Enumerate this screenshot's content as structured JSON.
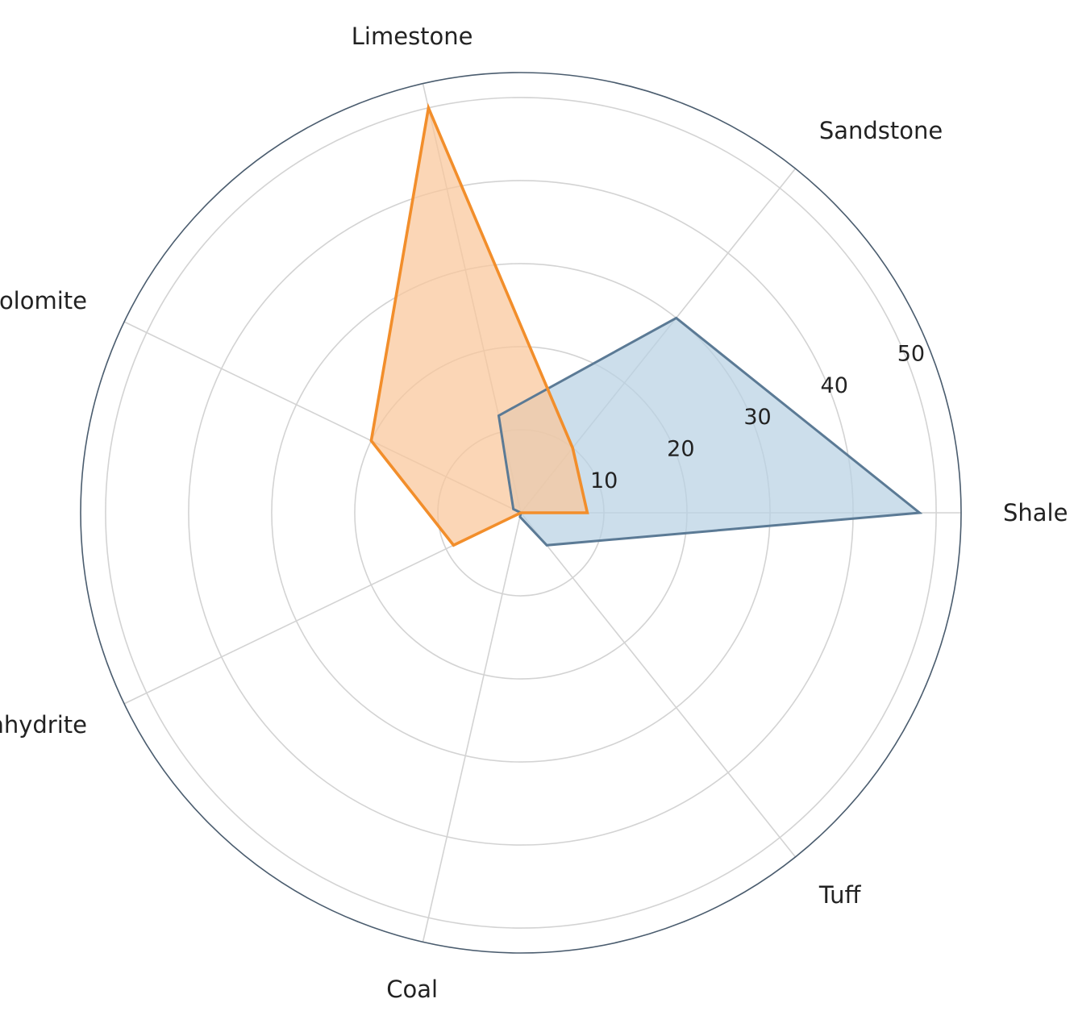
{
  "chart_data": {
    "type": "radar",
    "categories": [
      "Shale",
      "Sandstone",
      "Limestone",
      "Dolomite",
      "Anhydrite",
      "Coal",
      "Tuff"
    ],
    "rlim": [
      0,
      53
    ],
    "r_ticks": [
      10,
      20,
      30,
      40,
      50
    ],
    "r_tick_labels": [
      "10",
      "20",
      "30",
      "40",
      "50"
    ],
    "grid": true,
    "series": [
      {
        "values": [
          48,
          30,
          12,
          1,
          0,
          0.5,
          5
        ]
      },
      {
        "values": [
          8,
          10,
          50,
          20,
          9,
          0,
          0
        ]
      }
    ]
  },
  "colors": {
    "series_0_line": "#5b7a95",
    "series_0_fill": "#b9d1e3",
    "series_1_line": "#f28e2b",
    "series_1_fill": "#f9c69a",
    "grid": "#d3d3d3",
    "frame": "#4a5c6e"
  }
}
